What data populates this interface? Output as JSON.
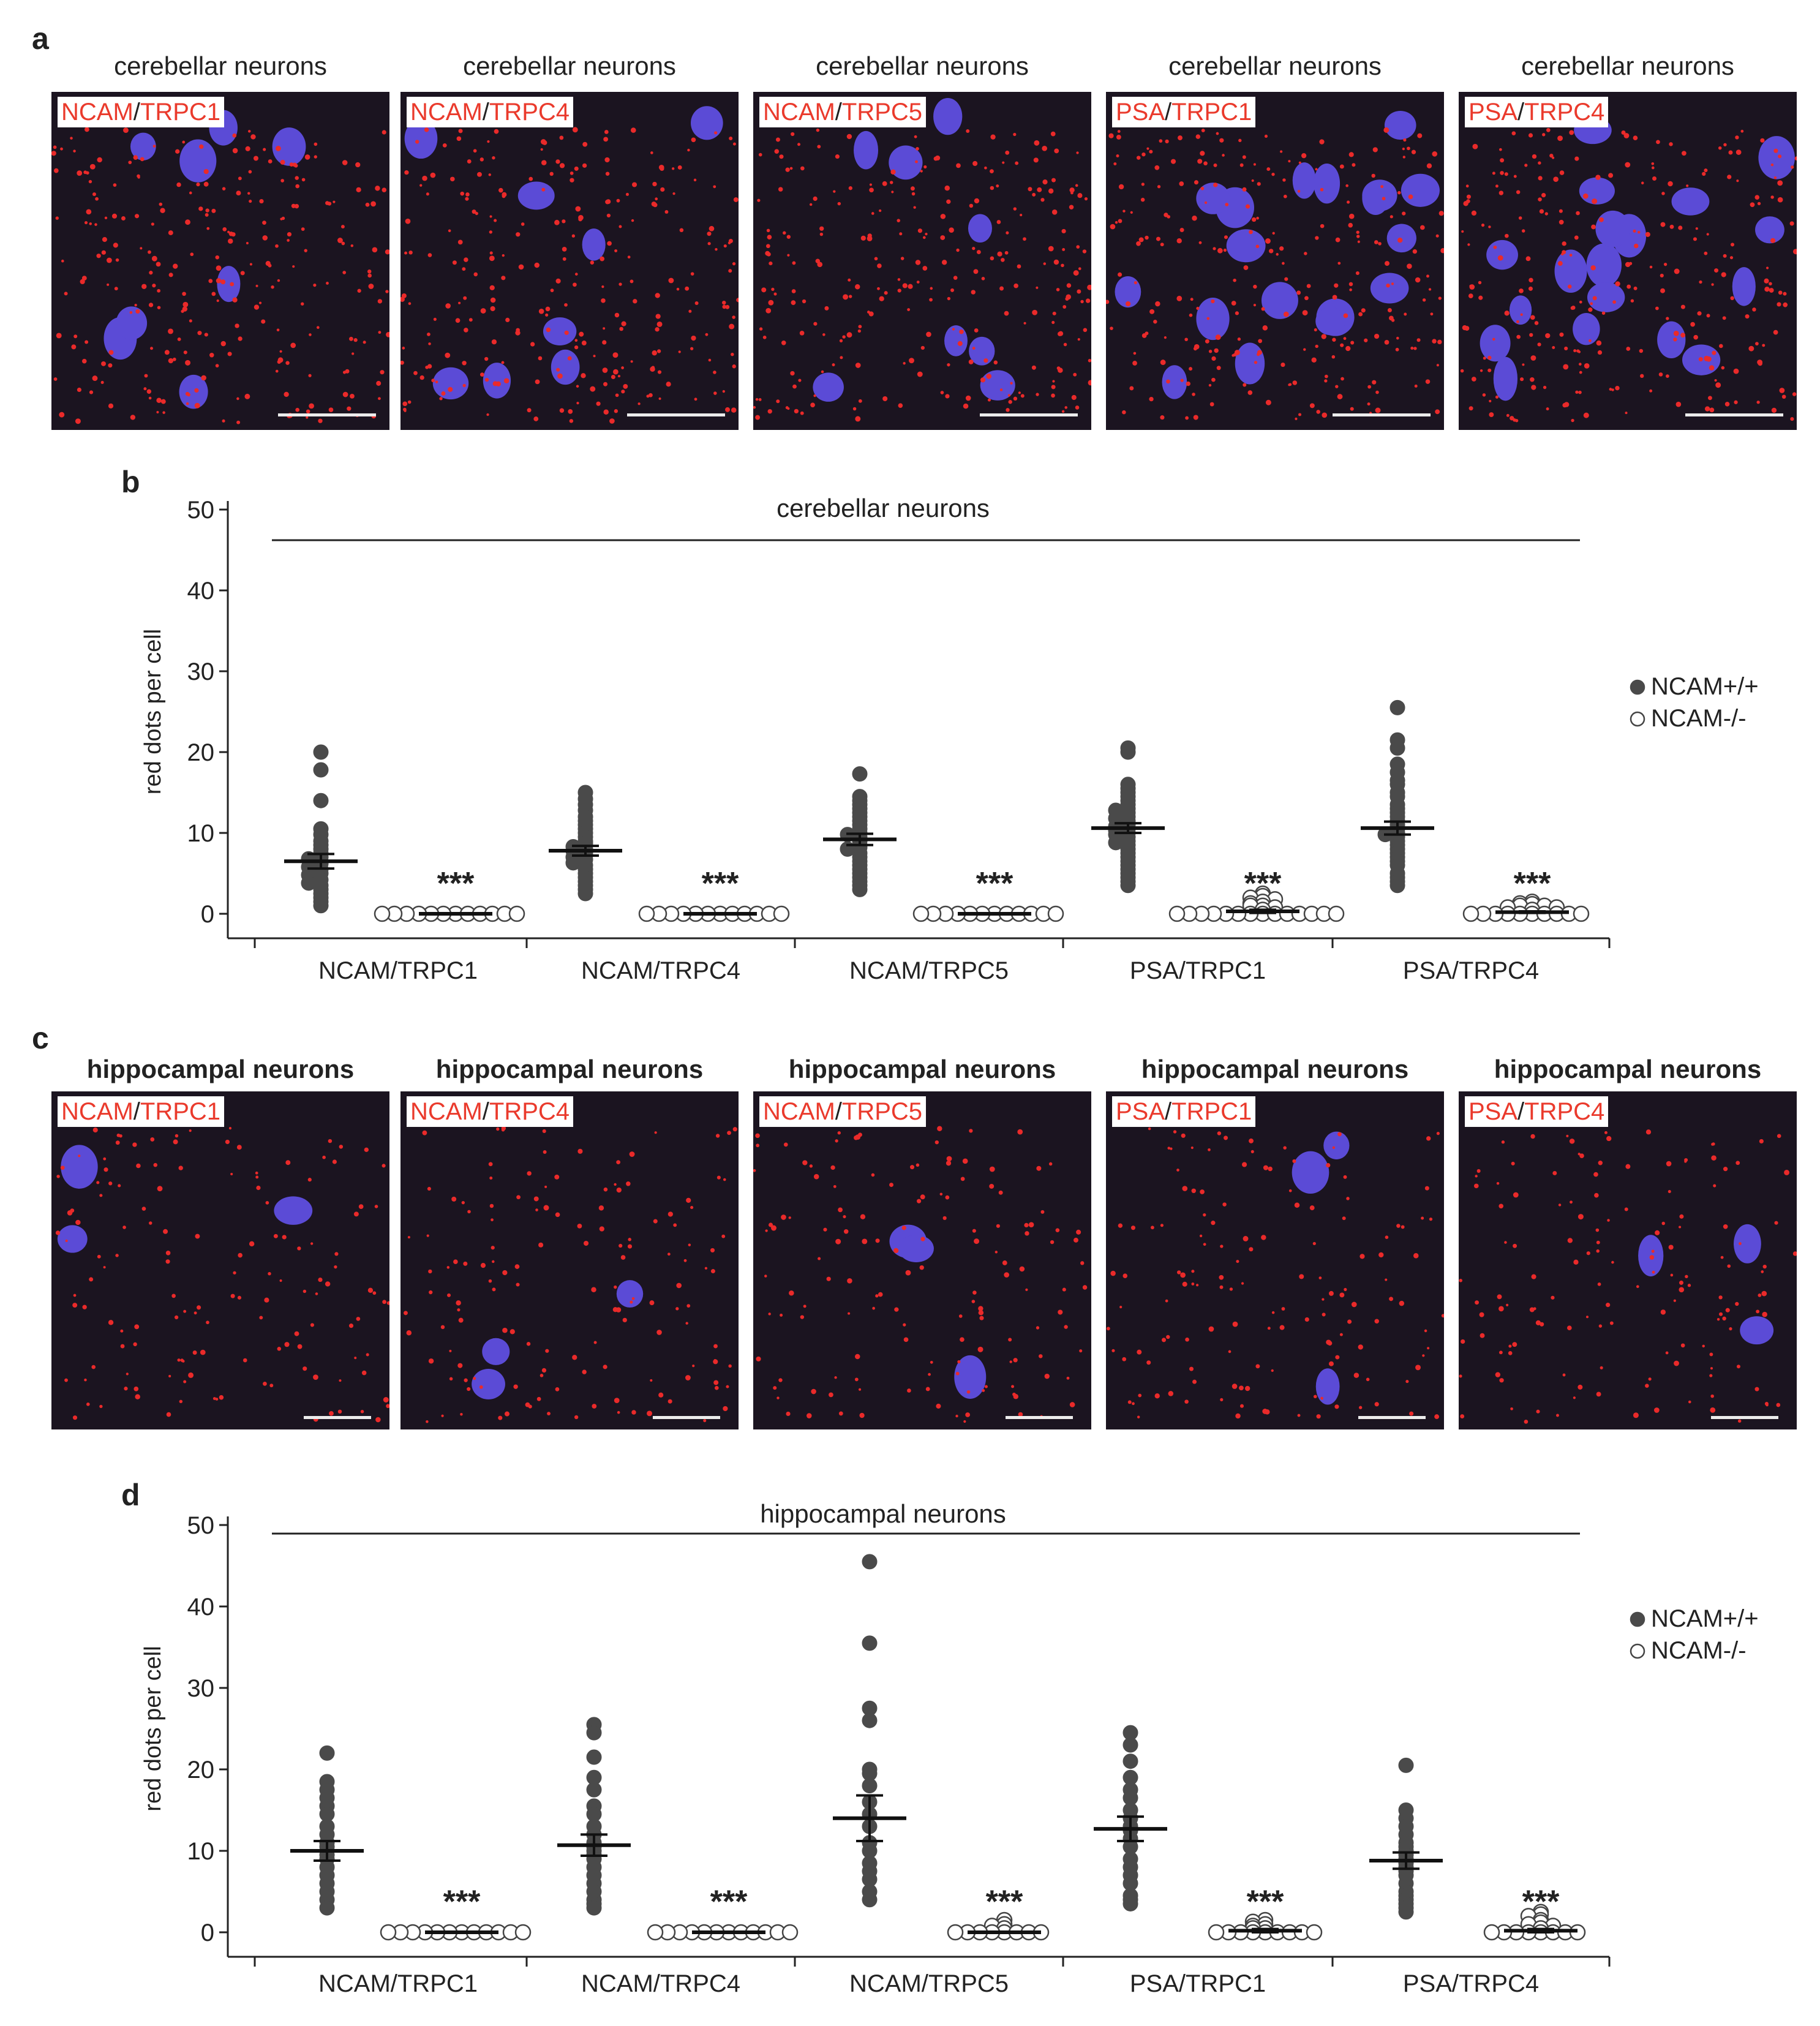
{
  "colors": {
    "image_bg": "#1b1420",
    "nucleus": "#5b4bd6",
    "dot": "#ea2a2a",
    "label_red": "#ea3a2c",
    "filled": "#4a4a4a",
    "open": "#ffffff"
  },
  "panel_a": {
    "letter": "a",
    "images": [
      {
        "title": "cerebellar neurons",
        "label1": "NCAM",
        "sep": "/",
        "label2": "TRPC1"
      },
      {
        "title": "cerebellar neurons",
        "label1": "NCAM",
        "sep": "/",
        "label2": "TRPC4"
      },
      {
        "title": "cerebellar neurons",
        "label1": "NCAM",
        "sep": "/",
        "label2": "TRPC5"
      },
      {
        "title": "cerebellar neurons",
        "label1": "PSA",
        "sep": "/",
        "label2": "TRPC1"
      },
      {
        "title": "cerebellar neurons",
        "label1": "PSA",
        "sep": "/",
        "label2": "TRPC4"
      }
    ]
  },
  "panel_c": {
    "letter": "c",
    "images": [
      {
        "title": "hippocampal neurons",
        "label1": "NCAM",
        "sep": "/",
        "label2": "TRPC1"
      },
      {
        "title": "hippocampal neurons",
        "label1": "NCAM",
        "sep": "/",
        "label2": "TRPC4"
      },
      {
        "title": "hippocampal neurons",
        "label1": "NCAM",
        "sep": "/",
        "label2": "TRPC5"
      },
      {
        "title": "hippocampal neurons",
        "label1": "PSA",
        "sep": "/",
        "label2": "TRPC1"
      },
      {
        "title": "hippocampal neurons",
        "label1": "PSA",
        "sep": "/",
        "label2": "TRPC4"
      }
    ]
  },
  "chart_data": [
    {
      "panel": "b",
      "type": "scatter",
      "title": "cerebellar neurons",
      "ylabel": "red dots per cell",
      "ylim": [
        0,
        50
      ],
      "yticks": [
        0,
        10,
        20,
        30,
        40,
        50
      ],
      "categories": [
        "NCAM/TRPC1",
        "NCAM/TRPC4",
        "NCAM/TRPC5",
        "PSA/TRPC1",
        "PSA/TRPC4"
      ],
      "legend": [
        "NCAM+/+",
        "NCAM-/-"
      ],
      "legend_position": "right",
      "significance": "***",
      "series": [
        {
          "name": "NCAM+/+",
          "means": [
            6.5,
            7.8,
            9.2,
            10.6,
            10.6
          ],
          "sems": [
            0.9,
            0.6,
            0.7,
            0.6,
            0.8
          ],
          "points": [
            [
              20,
              17.8,
              14,
              10.5,
              9.8,
              9,
              8.5,
              8,
              7.5,
              7,
              6.8,
              6.2,
              5.8,
              5.5,
              5,
              4.8,
              4.2,
              3.8,
              3.5,
              3,
              2.5,
              2,
              1.5,
              1
            ],
            [
              15,
              14.2,
              13.5,
              12.8,
              12,
              11.5,
              11,
              10.5,
              10,
              9.5,
              9,
              8.7,
              8.3,
              8,
              7.8,
              7.5,
              7.2,
              7,
              6.7,
              6.3,
              6,
              5.5,
              5,
              4.5,
              4,
              3.5,
              3,
              2.5
            ],
            [
              17.3,
              14.5,
              14,
              13.5,
              13,
              12.5,
              12,
              11.5,
              11,
              10.5,
              10,
              9.8,
              9.5,
              9,
              8.5,
              8.2,
              8,
              7.5,
              7,
              6.5,
              6,
              5.5,
              5,
              4.5,
              4,
              3.5,
              3
            ],
            [
              20.5,
              20,
              16,
              15.5,
              15,
              14.5,
              14,
              13.5,
              13,
              12.8,
              12.5,
              12,
              11.8,
              11.5,
              11,
              10.8,
              10.5,
              10.3,
              10,
              9.8,
              9.5,
              9,
              8.8,
              8.5,
              8,
              7.5,
              7,
              6.5,
              6,
              5.5,
              5,
              4.5,
              4,
              3.5
            ],
            [
              25.5,
              21.5,
              20.5,
              18.5,
              17.5,
              16.5,
              16,
              15,
              14.5,
              13.5,
              13,
              12.5,
              12,
              11.5,
              11,
              10.5,
              10,
              9.8,
              9.5,
              9,
              8.5,
              8,
              7.5,
              7,
              6.5,
              6,
              5,
              4.5,
              4,
              3.5
            ]
          ]
        },
        {
          "name": "NCAM-/-",
          "means": [
            0,
            0,
            0,
            0.3,
            0.2
          ],
          "sems": [
            0,
            0,
            0,
            0.2,
            0.1
          ],
          "points": [
            [
              0,
              0,
              0,
              0,
              0,
              0,
              0,
              0,
              0,
              0,
              0,
              0
            ],
            [
              0,
              0,
              0,
              0,
              0,
              0,
              0,
              0,
              0,
              0,
              0,
              0
            ],
            [
              0,
              0,
              0,
              0,
              0,
              0,
              0,
              0,
              0,
              0,
              0,
              0
            ],
            [
              2.5,
              2.2,
              2,
              1.8,
              1.5,
              1.3,
              1,
              1,
              0.8,
              0.5,
              0,
              0,
              0,
              0,
              0,
              0,
              0,
              0,
              0,
              0,
              0,
              0,
              0,
              0
            ],
            [
              1.5,
              1.3,
              1.2,
              1,
              1,
              0.8,
              0.8,
              0.5,
              0,
              0,
              0,
              0,
              0,
              0,
              0,
              0,
              0,
              0
            ]
          ]
        }
      ]
    },
    {
      "panel": "d",
      "type": "scatter",
      "title": "hippocampal neurons",
      "ylabel": "red dots per cell",
      "ylim": [
        0,
        50
      ],
      "yticks": [
        0,
        10,
        20,
        30,
        40,
        50
      ],
      "categories": [
        "NCAM/TRPC1",
        "NCAM/TRPC4",
        "NCAM/TRPC5",
        "PSA/TRPC1",
        "PSA/TRPC4"
      ],
      "legend": [
        "NCAM+/+",
        "NCAM-/-"
      ],
      "legend_position": "right",
      "significance": "***",
      "series": [
        {
          "name": "NCAM+/+",
          "means": [
            10,
            10.7,
            14,
            12.7,
            8.8
          ],
          "sems": [
            1.2,
            1.3,
            2.8,
            1.5,
            1.0
          ],
          "points": [
            [
              22,
              18.5,
              17.5,
              16.5,
              15.5,
              14.5,
              13,
              12,
              11,
              10.5,
              10,
              9.5,
              9,
              8,
              7,
              6,
              5,
              4,
              3
            ],
            [
              25.5,
              24.5,
              21.5,
              19,
              17.5,
              15.5,
              14.5,
              13,
              12,
              11,
              10.5,
              10,
              9.5,
              9,
              8,
              7,
              6,
              5,
              4,
              3.5,
              3
            ],
            [
              45.5,
              35.5,
              27.5,
              26,
              20,
              19.5,
              18,
              16,
              14.5,
              13,
              11,
              10,
              8.5,
              7.5,
              6.5,
              5,
              4
            ],
            [
              24.5,
              23,
              21,
              19,
              17.5,
              16.5,
              15,
              14,
              13,
              12.5,
              11.5,
              10.5,
              9,
              8,
              7,
              6,
              4.5,
              4,
              3.5
            ],
            [
              20.5,
              15,
              14,
              13,
              12,
              11,
              10.5,
              10,
              9.5,
              9,
              8.5,
              8,
              7.5,
              7,
              6,
              5,
              4.5,
              4,
              3.5,
              3,
              2.5
            ]
          ]
        },
        {
          "name": "NCAM-/-",
          "means": [
            0,
            0,
            0,
            0.2,
            0.2
          ],
          "sems": [
            0,
            0,
            0,
            0.2,
            0.2
          ],
          "points": [
            [
              0,
              0,
              0,
              0,
              0,
              0,
              0,
              0,
              0,
              0,
              0,
              0
            ],
            [
              0,
              0,
              0,
              0,
              0,
              0,
              0,
              0,
              0,
              0,
              0,
              0
            ],
            [
              1.5,
              1,
              0.8,
              0.5,
              0,
              0,
              0,
              0,
              0,
              0,
              0,
              0
            ],
            [
              1.5,
              1.3,
              1,
              0.8,
              0.5,
              0.5,
              0,
              0,
              0,
              0,
              0,
              0,
              0,
              0,
              0
            ],
            [
              2.5,
              2.2,
              2,
              1.5,
              1.2,
              1,
              0.8,
              0.5,
              0,
              0,
              0,
              0,
              0,
              0,
              0,
              0
            ]
          ]
        }
      ]
    }
  ]
}
